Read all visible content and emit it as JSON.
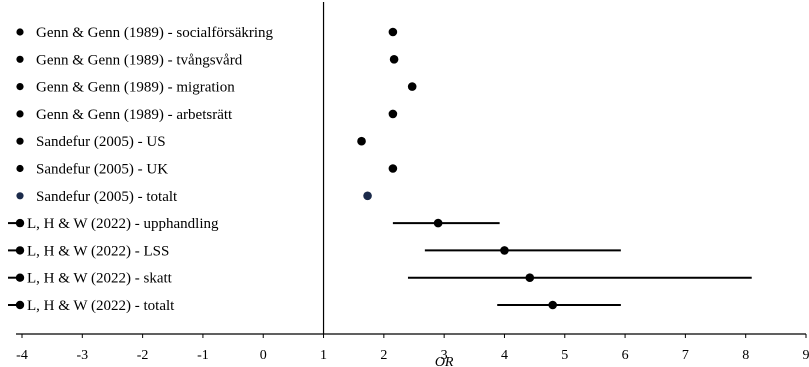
{
  "chart_data": {
    "type": "scatter",
    "subtype": "forest-plot",
    "xlabel": "OR",
    "xlim": [
      -4,
      9
    ],
    "xticks": [
      "-4",
      "-3",
      "-2",
      "-1",
      "0",
      "1",
      "2",
      "3",
      "4",
      "5",
      "6",
      "7",
      "8",
      "9"
    ],
    "reference_line": 1,
    "grid": false,
    "rows": [
      {
        "label": "Genn & Genn (1989) - socialförsäkring",
        "or": 2.15,
        "ci": null
      },
      {
        "label": "Genn & Genn (1989) - tvångsvård",
        "or": 2.17,
        "ci": null
      },
      {
        "label": "Genn & Genn (1989) - migration",
        "or": 2.47,
        "ci": null
      },
      {
        "label": "Genn & Genn (1989) - arbetsrätt",
        "or": 2.15,
        "ci": null
      },
      {
        "label": "Sandefur (2005) - US",
        "or": 1.63,
        "ci": null
      },
      {
        "label": "Sandefur (2005) - UK",
        "or": 2.15,
        "ci": null
      },
      {
        "label": "Sandefur (2005) - totalt",
        "or": 1.73,
        "ci": null,
        "highlight": true
      },
      {
        "label": "L, H & W (2022) - upphandling",
        "or": 2.9,
        "ci": [
          2.15,
          3.92
        ]
      },
      {
        "label": "L, H & W (2022) - LSS",
        "or": 4.0,
        "ci": [
          2.68,
          5.93
        ]
      },
      {
        "label": "L, H & W (2022) - skatt",
        "or": 4.42,
        "ci": [
          2.4,
          8.1
        ]
      },
      {
        "label": "L, H & W (2022) - totalt",
        "or": 4.8,
        "ci": [
          3.88,
          5.93
        ]
      }
    ]
  },
  "colors": {
    "marker": "#000000",
    "marker_highlight": "#1b2a4a",
    "ci_line": "#000000"
  }
}
